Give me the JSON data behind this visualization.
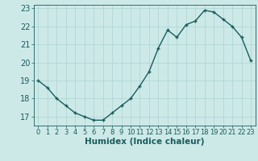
{
  "x": [
    0,
    1,
    2,
    3,
    4,
    5,
    6,
    7,
    8,
    9,
    10,
    11,
    12,
    13,
    14,
    15,
    16,
    17,
    18,
    19,
    20,
    21,
    22,
    23
  ],
  "y": [
    19.0,
    18.6,
    18.0,
    17.6,
    17.2,
    17.0,
    16.8,
    16.8,
    17.2,
    17.6,
    18.0,
    18.7,
    19.5,
    20.8,
    21.8,
    21.4,
    22.1,
    22.3,
    22.9,
    22.8,
    22.4,
    22.0,
    21.4,
    20.1
  ],
  "bg_color": "#cce9e8",
  "grid_color": "#aad4d2",
  "line_color": "#1a5c5c",
  "marker_color": "#1a5c5c",
  "xlabel": "Humidex (Indice chaleur)",
  "xlim": [
    -0.5,
    23.5
  ],
  "ylim": [
    16.5,
    23.2
  ],
  "yticks": [
    17,
    18,
    19,
    20,
    21,
    22,
    23
  ],
  "xticks": [
    0,
    1,
    2,
    3,
    4,
    5,
    6,
    7,
    8,
    9,
    10,
    11,
    12,
    13,
    14,
    15,
    16,
    17,
    18,
    19,
    20,
    21,
    22,
    23
  ],
  "xlabel_fontsize": 7.5,
  "tick_fontsize": 7,
  "line_width": 1.0,
  "marker_size": 3.5,
  "marker_style": "+"
}
